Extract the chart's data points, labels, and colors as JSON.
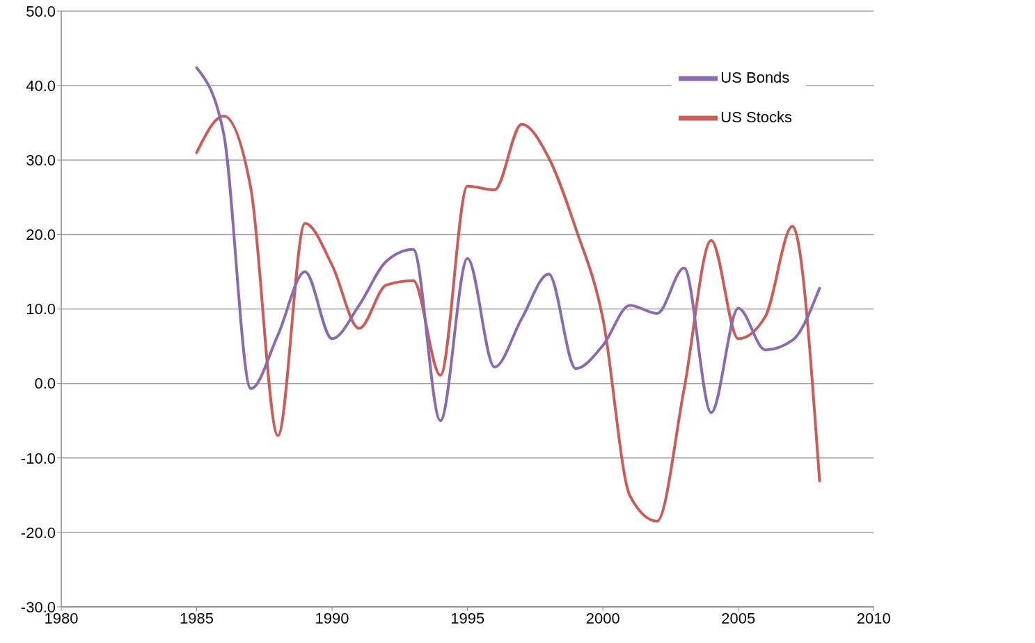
{
  "chart_data": {
    "type": "line",
    "x": [
      1985,
      1986,
      1987,
      1988,
      1989,
      1990,
      1991,
      1992,
      1993,
      1994,
      1995,
      1996,
      1997,
      1998,
      1999,
      2000,
      2001,
      2002,
      2003,
      2004,
      2005,
      2006,
      2007,
      2008
    ],
    "series": [
      {
        "name": "US Stocks",
        "color": "#cd5c57",
        "values": [
          31.0,
          35.9,
          26.2,
          -7.0,
          21.5,
          15.9,
          7.4,
          13.2,
          13.8,
          1.1,
          26.5,
          26.0,
          34.8,
          30.3,
          20.8,
          8.7,
          -15.1,
          -18.5,
          -0.7,
          19.2,
          6.0,
          9.0,
          21.1,
          -13.1
        ]
      },
      {
        "name": "US Bonds",
        "color": "#8a6bb0",
        "values": [
          42.4,
          33.5,
          -0.7,
          6.5,
          15.0,
          6.0,
          10.5,
          16.4,
          18.0,
          -5.0,
          16.8,
          2.2,
          8.7,
          14.7,
          2.0,
          5.1,
          10.5,
          9.4,
          15.5,
          -3.9,
          10.1,
          4.5,
          5.8,
          12.8
        ]
      }
    ],
    "xlim": [
      1980,
      2010
    ],
    "xticks": [
      1980,
      1985,
      1990,
      1995,
      2000,
      2005,
      2010
    ],
    "ylim": [
      -30,
      50
    ],
    "yticks": [
      {
        "value": -30,
        "label": "-30.0"
      },
      {
        "value": -20,
        "label": "-20.0"
      },
      {
        "value": -10,
        "label": "-10.0"
      },
      {
        "value": 0,
        "label": "0.0"
      },
      {
        "value": 10,
        "label": "10.0"
      },
      {
        "value": 20,
        "label": "20.0"
      },
      {
        "value": 30,
        "label": "30.0"
      },
      {
        "value": 40,
        "label": "40.0"
      },
      {
        "value": 50,
        "label": "50.0"
      }
    ],
    "grid": "y",
    "legend": "top right",
    "marker": "none",
    "line_style": "solid"
  }
}
